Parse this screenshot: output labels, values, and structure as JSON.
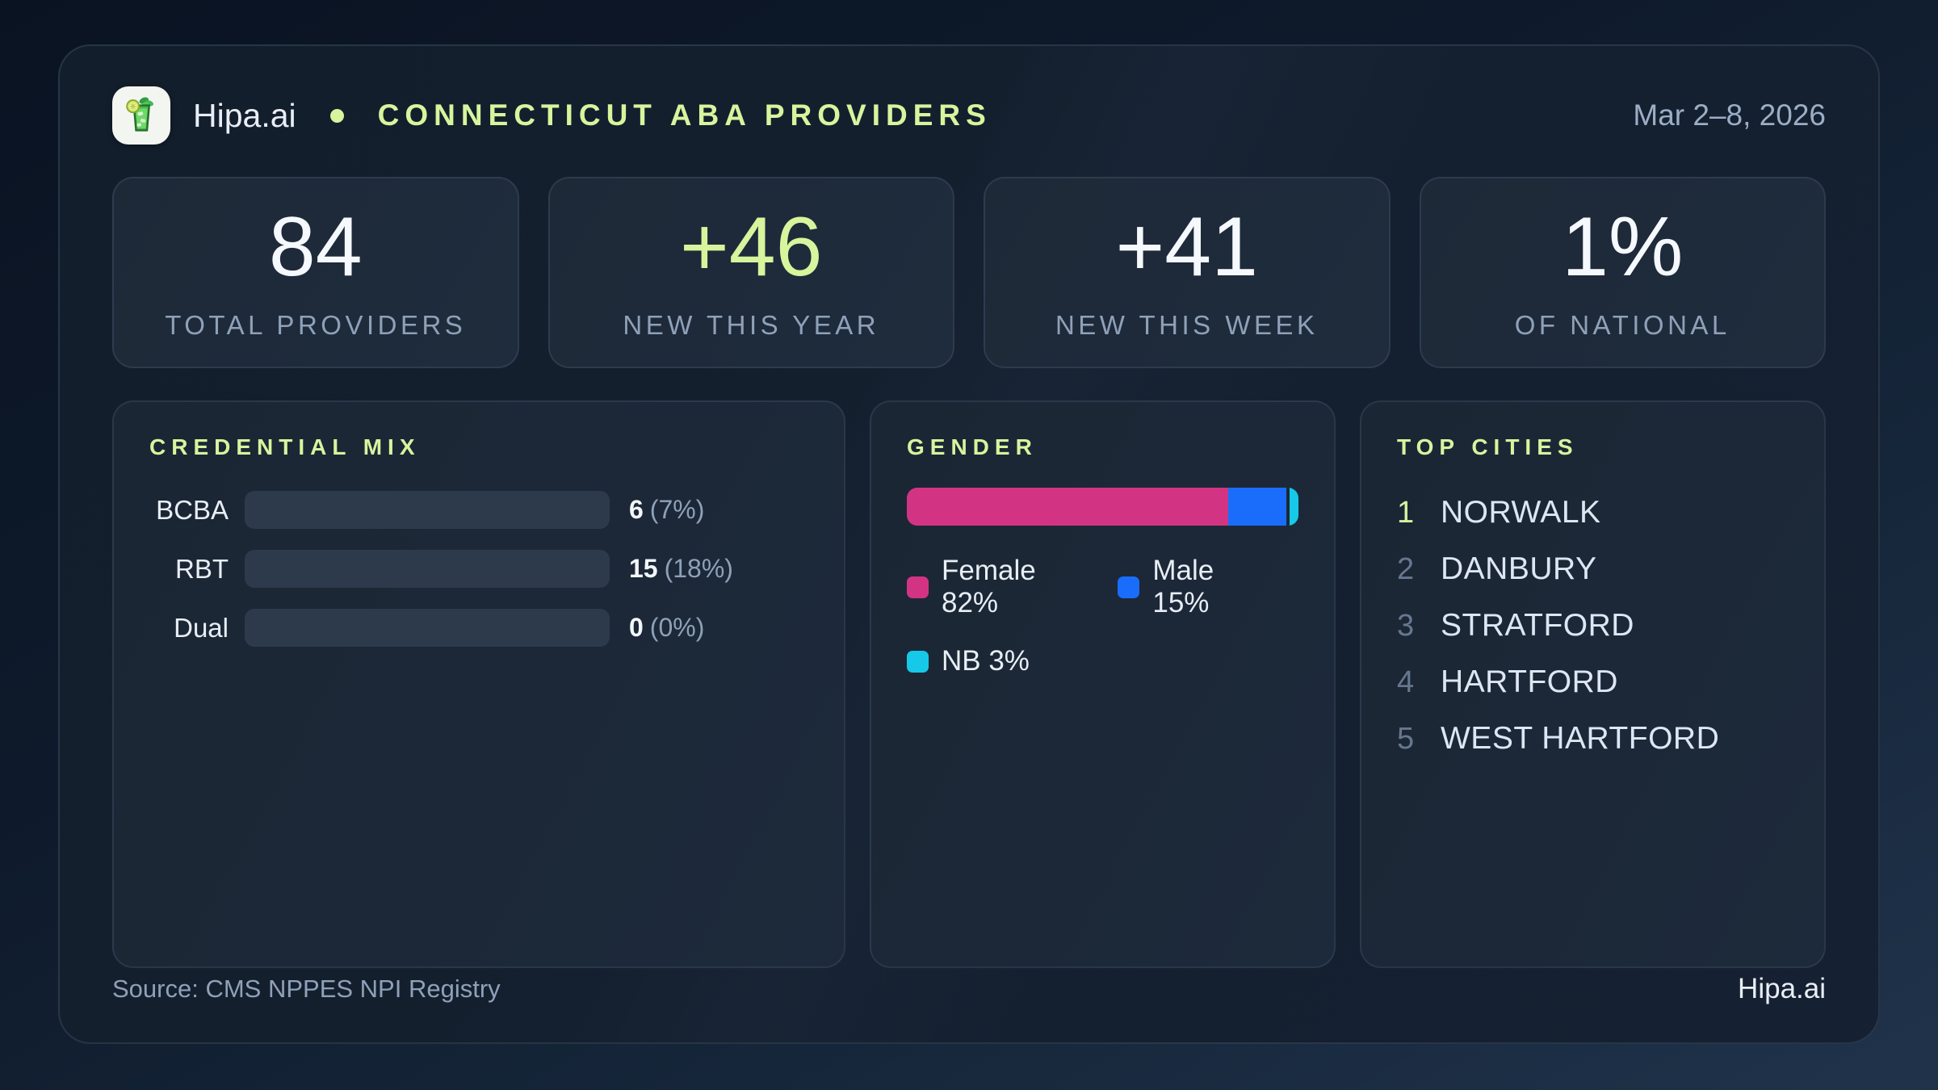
{
  "header": {
    "brand": "Hipa.ai",
    "title": "CONNECTICUT ABA PROVIDERS",
    "date_range": "Mar 2–8, 2026",
    "logo_icon": "mojito-glass-icon"
  },
  "stats": [
    {
      "value": "84",
      "label": "TOTAL PROVIDERS",
      "accent": false
    },
    {
      "value": "+46",
      "label": "NEW THIS YEAR",
      "accent": true
    },
    {
      "value": "+41",
      "label": "NEW THIS WEEK",
      "accent": false
    },
    {
      "value": "1%",
      "label": "OF NATIONAL",
      "accent": false
    }
  ],
  "credential_mix": {
    "title": "CREDENTIAL MIX",
    "rows": [
      {
        "label": "BCBA",
        "count_label": "6",
        "percent_label": "(7%)",
        "fill_pct": 40,
        "color": "#1170ff"
      },
      {
        "label": "RBT",
        "count_label": "15",
        "percent_label": "(18%)",
        "fill_pct": 100,
        "color": "#1e8a55"
      },
      {
        "label": "Dual",
        "count_label": "0",
        "percent_label": "(0%)",
        "fill_pct": 0,
        "color": "transparent"
      }
    ]
  },
  "gender": {
    "title": "GENDER",
    "segments": [
      {
        "label": "Female",
        "percent": 82,
        "color": "#d23483",
        "legend_label": "Female 82%"
      },
      {
        "label": "Male",
        "percent": 15,
        "color": "#1a6dfb",
        "legend_label": "Male 15%"
      },
      {
        "label": "NB",
        "percent": 3,
        "color": "#16c9e8",
        "legend_label": "NB 3%"
      }
    ]
  },
  "top_cities": {
    "title": "TOP CITIES",
    "items": [
      {
        "rank": "1",
        "name": "NORWALK"
      },
      {
        "rank": "2",
        "name": "DANBURY"
      },
      {
        "rank": "3",
        "name": "STRATFORD"
      },
      {
        "rank": "4",
        "name": "HARTFORD"
      },
      {
        "rank": "5",
        "name": "WEST HARTFORD"
      }
    ]
  },
  "footer": {
    "source": "Source: CMS NPPES NPI Registry",
    "brand": "Hipa.ai"
  },
  "colors": {
    "accent_lime": "#d6f59d",
    "bar_blue": "#1170ff",
    "bar_green": "#1e8a55",
    "bar_pink": "#d23483",
    "bar_cyan": "#16c9e8",
    "track": "#2d3a4c",
    "muted_text": "#8fa1b9"
  },
  "chart_data": [
    {
      "type": "bar",
      "orientation": "horizontal",
      "title": "CREDENTIAL MIX",
      "categories": [
        "BCBA",
        "RBT",
        "Dual"
      ],
      "values": [
        6,
        15,
        0
      ],
      "percent_of_total": [
        7,
        18,
        0
      ],
      "value_labels": [
        "6 (7%)",
        "15 (18%)",
        "0 (0%)"
      ],
      "xlim": [
        0,
        15
      ],
      "bar_colors": [
        "#1170ff",
        "#1e8a55",
        "none"
      ],
      "grid": false
    },
    {
      "type": "bar",
      "subtype": "stacked-single-row",
      "title": "GENDER",
      "categories": [
        "Female",
        "Male",
        "NB"
      ],
      "values": [
        82,
        15,
        3
      ],
      "unit": "%",
      "colors": [
        "#d23483",
        "#1a6dfb",
        "#16c9e8"
      ],
      "legend_position": "below",
      "legend_entries": [
        "Female 82%",
        "Male 15%",
        "NB 3%"
      ]
    }
  ]
}
